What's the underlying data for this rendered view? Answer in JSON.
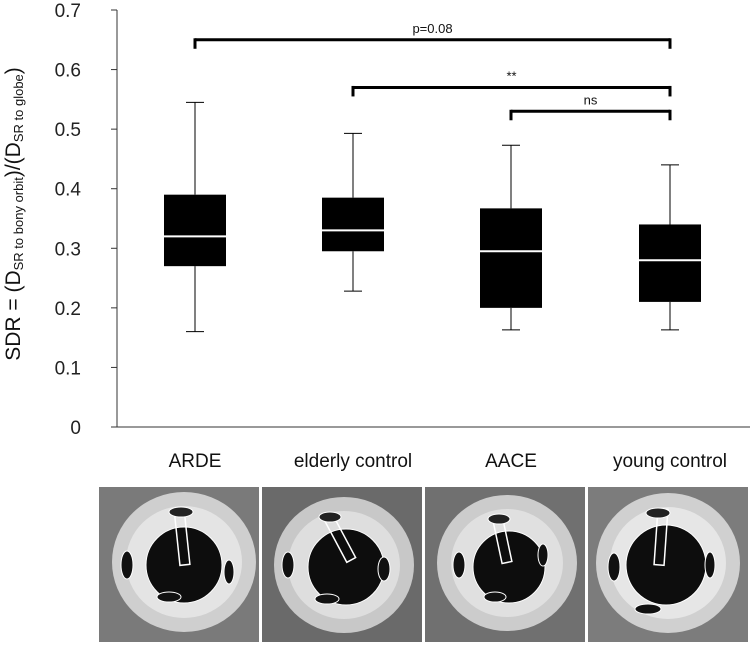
{
  "chart_data": {
    "type": "box",
    "title": "",
    "xlabel": "",
    "ylabel": {
      "prefix": "SDR = (D",
      "sub1": "SR to bony orbit",
      "mid": ")/(D",
      "sub2": "SR to globe",
      "suffix": ")"
    },
    "ylim": [
      0,
      0.7
    ],
    "yticks": [
      "0",
      "0.1",
      "0.2",
      "0.3",
      "0.4",
      "0.5",
      "0.6",
      "0.7"
    ],
    "grid": false,
    "categories": [
      "ARDE",
      "elderly control",
      "AACE",
      "young control"
    ],
    "boxes": [
      {
        "whisker_low": 0.16,
        "q1": 0.27,
        "median": 0.32,
        "q3": 0.39,
        "whisker_high": 0.545
      },
      {
        "whisker_low": 0.228,
        "q1": 0.295,
        "median": 0.33,
        "q3": 0.385,
        "whisker_high": 0.493
      },
      {
        "whisker_low": 0.163,
        "q1": 0.2,
        "median": 0.295,
        "q3": 0.367,
        "whisker_high": 0.473
      },
      {
        "whisker_low": 0.163,
        "q1": 0.21,
        "median": 0.28,
        "q3": 0.34,
        "whisker_high": 0.44
      }
    ],
    "comparisons": [
      {
        "from": 0,
        "to": 3,
        "label": "p=0.08",
        "y": 0.65
      },
      {
        "from": 1,
        "to": 3,
        "label": "**",
        "y": 0.57
      },
      {
        "from": 2,
        "to": 3,
        "label": "ns",
        "y": 0.53
      }
    ]
  },
  "panels": [
    {
      "group": "ARDE"
    },
    {
      "group": "elderly control"
    },
    {
      "group": "AACE"
    },
    {
      "group": "young control"
    }
  ],
  "colors": {
    "box": "#000000",
    "median": "#ffffff",
    "axis": "#333333"
  }
}
